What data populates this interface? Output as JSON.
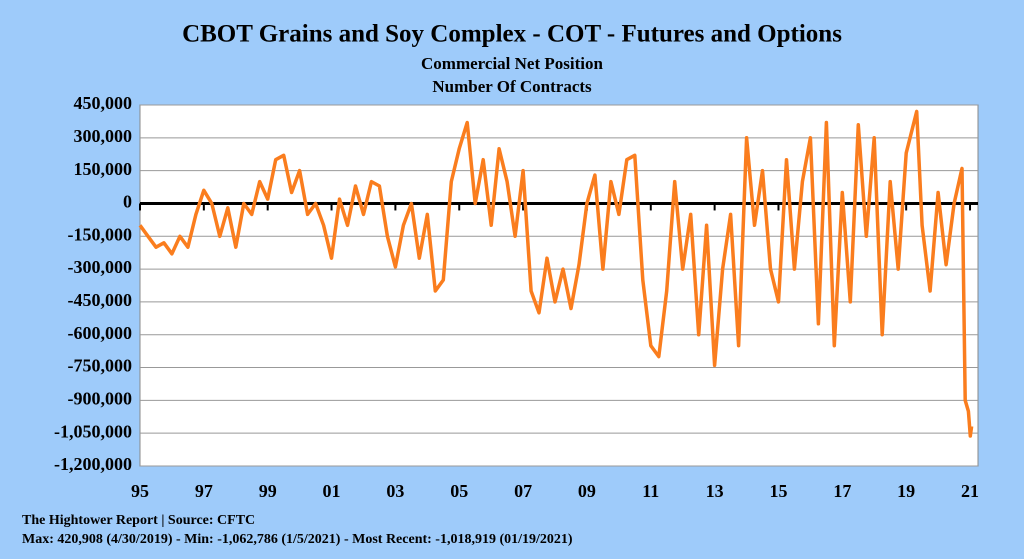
{
  "chart_data": {
    "type": "line",
    "title": "CBOT Grains and Soy Complex - COT - Futures and Options",
    "subtitle": [
      "Commercial Net Position",
      "Number Of Contracts"
    ],
    "footer": [
      "The Hightower Report | Source: CFTC",
      "Max: 420,908 (4/30/2019)  -  Min: -1,062,786 (1/5/2021) - Most Recent: -1,018,919 (01/19/2021)"
    ],
    "xlim": [
      1995,
      2021.25
    ],
    "xticks": [
      {
        "value": 1995,
        "label": "95"
      },
      {
        "value": 1997,
        "label": "97"
      },
      {
        "value": 1999,
        "label": "99"
      },
      {
        "value": 2001,
        "label": "01"
      },
      {
        "value": 2003,
        "label": "03"
      },
      {
        "value": 2005,
        "label": "05"
      },
      {
        "value": 2007,
        "label": "07"
      },
      {
        "value": 2009,
        "label": "09"
      },
      {
        "value": 2011,
        "label": "11"
      },
      {
        "value": 2013,
        "label": "13"
      },
      {
        "value": 2015,
        "label": "15"
      },
      {
        "value": 2017,
        "label": "17"
      },
      {
        "value": 2019,
        "label": "19"
      },
      {
        "value": 2021,
        "label": "21"
      }
    ],
    "ylim": [
      -1200000,
      450000
    ],
    "yticks": [
      {
        "value": 450000,
        "label": "450,000"
      },
      {
        "value": 300000,
        "label": "300,000"
      },
      {
        "value": 150000,
        "label": "150,000"
      },
      0,
      {
        "value": -150000,
        "label": "-150,000"
      },
      {
        "value": -300000,
        "label": "-300,000"
      },
      {
        "value": -450000,
        "label": "-450,000"
      },
      {
        "value": -600000,
        "label": "-600,000"
      },
      {
        "value": -750000,
        "label": "-750,000"
      },
      {
        "value": -900000,
        "label": "-900,000"
      },
      {
        "value": -1050000,
        "label": "-1,050,000"
      },
      {
        "value": -1200000,
        "label": "-1,200,000"
      }
    ],
    "grid": true,
    "series": [
      {
        "color": "#fa7d1e",
        "x": [
          1995.0,
          1995.25,
          1995.5,
          1995.75,
          1996.0,
          1996.25,
          1996.5,
          1996.75,
          1997.0,
          1997.25,
          1997.5,
          1997.75,
          1998.0,
          1998.25,
          1998.5,
          1998.75,
          1999.0,
          1999.25,
          1999.5,
          1999.75,
          2000.0,
          2000.25,
          2000.5,
          2000.75,
          2001.0,
          2001.25,
          2001.5,
          2001.75,
          2002.0,
          2002.25,
          2002.5,
          2002.75,
          2003.0,
          2003.25,
          2003.5,
          2003.75,
          2004.0,
          2004.25,
          2004.5,
          2004.75,
          2005.0,
          2005.25,
          2005.5,
          2005.75,
          2006.0,
          2006.25,
          2006.5,
          2006.75,
          2007.0,
          2007.25,
          2007.5,
          2007.75,
          2008.0,
          2008.25,
          2008.5,
          2008.75,
          2009.0,
          2009.25,
          2009.5,
          2009.75,
          2010.0,
          2010.25,
          2010.5,
          2010.75,
          2011.0,
          2011.25,
          2011.5,
          2011.75,
          2012.0,
          2012.25,
          2012.5,
          2012.75,
          2013.0,
          2013.25,
          2013.5,
          2013.75,
          2014.0,
          2014.25,
          2014.5,
          2014.75,
          2015.0,
          2015.25,
          2015.5,
          2015.75,
          2016.0,
          2016.25,
          2016.5,
          2016.75,
          2017.0,
          2017.25,
          2017.5,
          2017.75,
          2018.0,
          2018.25,
          2018.5,
          2018.75,
          2019.0,
          2019.33,
          2019.5,
          2019.75,
          2020.0,
          2020.25,
          2020.5,
          2020.75,
          2020.85,
          2020.95,
          2021.01,
          2021.05
        ],
        "values": [
          -100000,
          -150000,
          -200000,
          -180000,
          -230000,
          -150000,
          -200000,
          -50000,
          60000,
          0,
          -150000,
          -20000,
          -200000,
          0,
          -50000,
          100000,
          20000,
          200000,
          220000,
          50000,
          150000,
          -50000,
          0,
          -100000,
          -250000,
          20000,
          -100000,
          80000,
          -50000,
          100000,
          80000,
          -150000,
          -290000,
          -100000,
          0,
          -250000,
          -50000,
          -400000,
          -350000,
          100000,
          250000,
          370000,
          0,
          200000,
          -100000,
          250000,
          100000,
          -150000,
          150000,
          -400000,
          -500000,
          -250000,
          -450000,
          -300000,
          -480000,
          -280000,
          0,
          130000,
          -300000,
          100000,
          -50000,
          200000,
          220000,
          -350000,
          -650000,
          -700000,
          -400000,
          100000,
          -300000,
          -50000,
          -600000,
          -100000,
          -740000,
          -300000,
          -50000,
          -650000,
          300000,
          -100000,
          150000,
          -300000,
          -450000,
          200000,
          -300000,
          100000,
          300000,
          -550000,
          370000,
          -650000,
          50000,
          -450000,
          360000,
          -150000,
          300000,
          -600000,
          100000,
          -300000,
          230000,
          420908,
          -100000,
          -400000,
          50000,
          -280000,
          0,
          160000,
          -900000,
          -950000,
          -1062786,
          -1018919
        ]
      }
    ]
  }
}
